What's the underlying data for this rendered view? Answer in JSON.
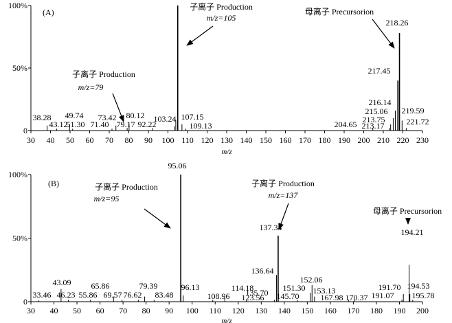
{
  "chart_data": [
    {
      "type": "bar",
      "panel_label": "(A)",
      "xlabel": "m/z",
      "xlim": [
        30,
        230
      ],
      "x_ticks": [
        30,
        40,
        50,
        60,
        70,
        80,
        90,
        100,
        110,
        120,
        130,
        140,
        150,
        160,
        170,
        180,
        190,
        200,
        210,
        220,
        230
      ],
      "y_ticks": [
        "0",
        "50%",
        "100%"
      ],
      "ylim": [
        0,
        100
      ],
      "peaks": [
        {
          "mz": 38.28,
          "intensity": 4,
          "label": "38.28"
        },
        {
          "mz": 43.12,
          "intensity": 1.5,
          "label": "43.12"
        },
        {
          "mz": 49.74,
          "intensity": 5,
          "label": "49.74"
        },
        {
          "mz": 51.3,
          "intensity": 1.5,
          "label": "51.30"
        },
        {
          "mz": 71.4,
          "intensity": 1.5,
          "label": "71.40"
        },
        {
          "mz": 73.42,
          "intensity": 4,
          "label": "73.42"
        },
        {
          "mz": 79.17,
          "intensity": 2,
          "label": "79.17"
        },
        {
          "mz": 80.12,
          "intensity": 5.5,
          "label": "80.12"
        },
        {
          "mz": 92.22,
          "intensity": 2,
          "label": "92.22"
        },
        {
          "mz": 103.24,
          "intensity": 3.5,
          "label": "103.24"
        },
        {
          "mz": 104.0,
          "intensity": 8,
          "label": ""
        },
        {
          "mz": 105.0,
          "intensity": 100,
          "label": ""
        },
        {
          "mz": 107.15,
          "intensity": 5,
          "label": "107.15"
        },
        {
          "mz": 109.13,
          "intensity": 1.5,
          "label": "109.13"
        },
        {
          "mz": 204.65,
          "intensity": 2,
          "label": "204.65"
        },
        {
          "mz": 213.17,
          "intensity": 2,
          "label": "213.17"
        },
        {
          "mz": 213.75,
          "intensity": 5,
          "label": "213.75"
        },
        {
          "mz": 215.06,
          "intensity": 10,
          "label": "215.06"
        },
        {
          "mz": 216.14,
          "intensity": 16,
          "label": "216.14"
        },
        {
          "mz": 217.45,
          "intensity": 40,
          "label": "217.45"
        },
        {
          "mz": 218.26,
          "intensity": 78,
          "label": "218.26"
        },
        {
          "mz": 219.59,
          "intensity": 8,
          "label": "219.59"
        },
        {
          "mz": 221.72,
          "intensity": 2,
          "label": "221.72"
        }
      ],
      "annotations": [
        {
          "title": "子离子 Production",
          "mz_label": "m/z=105"
        },
        {
          "title": "母离子 Precursorion",
          "mz_label": ""
        },
        {
          "title": "子离子 Production",
          "mz_label": "m/z=79"
        }
      ],
      "peak_label_105": ""
    },
    {
      "type": "bar",
      "panel_label": "(B)",
      "xlabel": "m/z",
      "xlim": [
        30,
        200
      ],
      "x_ticks": [
        30,
        40,
        50,
        60,
        70,
        80,
        90,
        100,
        110,
        120,
        130,
        140,
        150,
        160,
        170,
        180,
        190,
        200
      ],
      "y_ticks": [
        "0",
        "50%",
        "100%"
      ],
      "ylim": [
        0,
        100
      ],
      "peaks": [
        {
          "mz": 33.46,
          "intensity": 1,
          "label": "33.46"
        },
        {
          "mz": 43.09,
          "intensity": 10,
          "label": "43.09"
        },
        {
          "mz": 46.23,
          "intensity": 1.5,
          "label": "46.23"
        },
        {
          "mz": 55.86,
          "intensity": 1.5,
          "label": "55.86"
        },
        {
          "mz": 65.86,
          "intensity": 4,
          "label": "65.86"
        },
        {
          "mz": 69.57,
          "intensity": 1.5,
          "label": "69.57"
        },
        {
          "mz": 76.62,
          "intensity": 1.5,
          "label": "76.62"
        },
        {
          "mz": 79.39,
          "intensity": 4,
          "label": "79.39"
        },
        {
          "mz": 83.48,
          "intensity": 1.5,
          "label": "83.48"
        },
        {
          "mz": 95.06,
          "intensity": 100,
          "label": "95.06"
        },
        {
          "mz": 96.13,
          "intensity": 5,
          "label": "96.13"
        },
        {
          "mz": 108.96,
          "intensity": 1.5,
          "label": "108.96"
        },
        {
          "mz": 114.18,
          "intensity": 4,
          "label": "114.18"
        },
        {
          "mz": 123.56,
          "intensity": 1.5,
          "label": "123.56"
        },
        {
          "mz": 135.7,
          "intensity": 1.5,
          "label": "135.70"
        },
        {
          "mz": 136.64,
          "intensity": 21,
          "label": "136.64"
        },
        {
          "mz": 137.34,
          "intensity": 52,
          "label": "137.34"
        },
        {
          "mz": 145.7,
          "intensity": 1.5,
          "label": "145.70"
        },
        {
          "mz": 151.3,
          "intensity": 7,
          "label": "151.30"
        },
        {
          "mz": 152.06,
          "intensity": 13,
          "label": "152.06"
        },
        {
          "mz": 153.13,
          "intensity": 4,
          "label": "153.13"
        },
        {
          "mz": 167.98,
          "intensity": 1.5,
          "label": "167.98"
        },
        {
          "mz": 170.37,
          "intensity": 1.5,
          "label": "170.37"
        },
        {
          "mz": 191.07,
          "intensity": 1.5,
          "label": "191.07"
        },
        {
          "mz": 191.7,
          "intensity": 6,
          "label": "191.70"
        },
        {
          "mz": 194.21,
          "intensity": 29,
          "label": "194.21"
        },
        {
          "mz": 194.53,
          "intensity": 6,
          "label": "194.53"
        },
        {
          "mz": 195.78,
          "intensity": 1.5,
          "label": "195.78"
        }
      ],
      "annotations": [
        {
          "title": "子离子 Production",
          "mz_label": "m/z=95"
        },
        {
          "title": "子离子 Production",
          "mz_label": "m/z=137"
        },
        {
          "title": "母离子 Precursorion",
          "mz_label": ""
        }
      ]
    }
  ]
}
